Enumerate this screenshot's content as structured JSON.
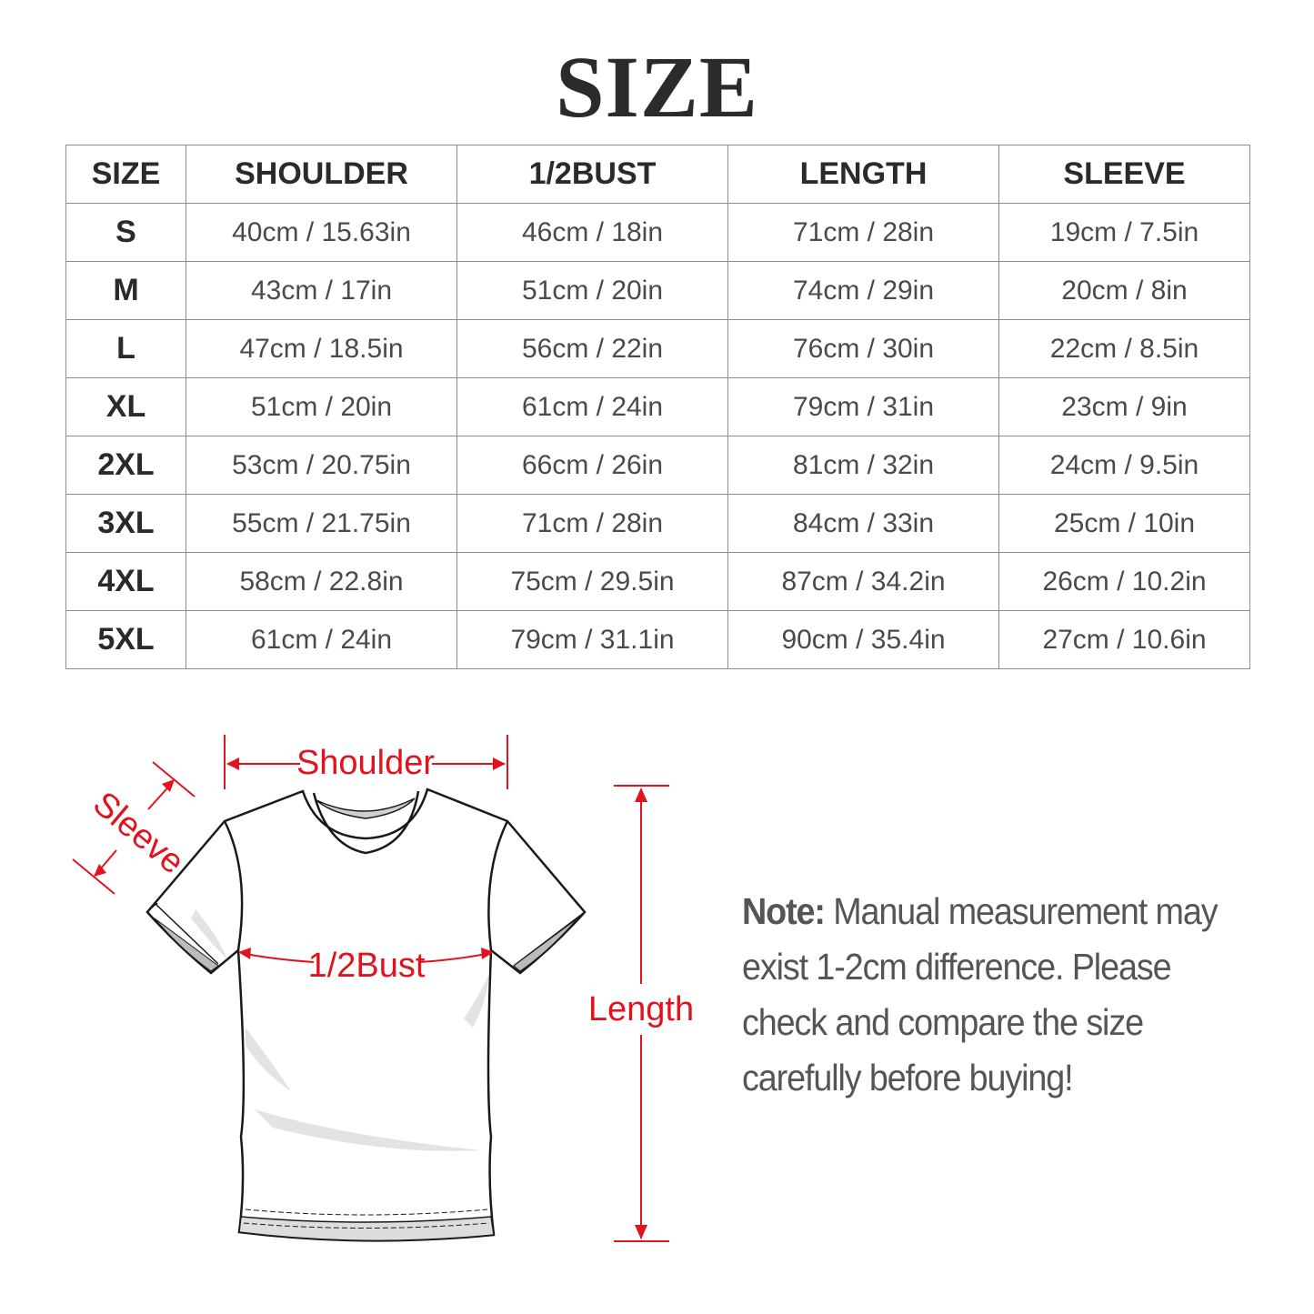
{
  "title": "SIZE",
  "table": {
    "headers": [
      "SIZE",
      "SHOULDER",
      "1/2BUST",
      "LENGTH",
      "SLEEVE"
    ],
    "rows": [
      [
        "S",
        "40cm / 15.63in",
        "46cm / 18in",
        "71cm / 28in",
        "19cm / 7.5in"
      ],
      [
        "M",
        "43cm / 17in",
        "51cm / 20in",
        "74cm / 29in",
        "20cm / 8in"
      ],
      [
        "L",
        "47cm / 18.5in",
        "56cm / 22in",
        "76cm / 30in",
        "22cm / 8.5in"
      ],
      [
        "XL",
        "51cm / 20in",
        "61cm / 24in",
        "79cm / 31in",
        "23cm / 9in"
      ],
      [
        "2XL",
        "53cm / 20.75in",
        "66cm / 26in",
        "81cm / 32in",
        "24cm / 9.5in"
      ],
      [
        "3XL",
        "55cm / 21.75in",
        "71cm / 28in",
        "84cm / 33in",
        "25cm / 10in"
      ],
      [
        "4XL",
        "58cm / 22.8in",
        "75cm / 29.5in",
        "87cm / 34.2in",
        "26cm / 10.2in"
      ],
      [
        "5XL",
        "61cm / 24in",
        "79cm / 31.1in",
        "90cm / 35.4in",
        "27cm / 10.6in"
      ]
    ]
  },
  "diagram": {
    "shoulder_label": "Shoulder",
    "sleeve_label": "Sleeve",
    "bust_label": "1/2Bust",
    "length_label": "Length",
    "accent_color": "#e0141e"
  },
  "note": {
    "label": "Note:",
    "lines": [
      " Manual measurement may",
      "exist 1-2cm difference. Please",
      "check and compare the size",
      "carefully before buying!"
    ]
  }
}
